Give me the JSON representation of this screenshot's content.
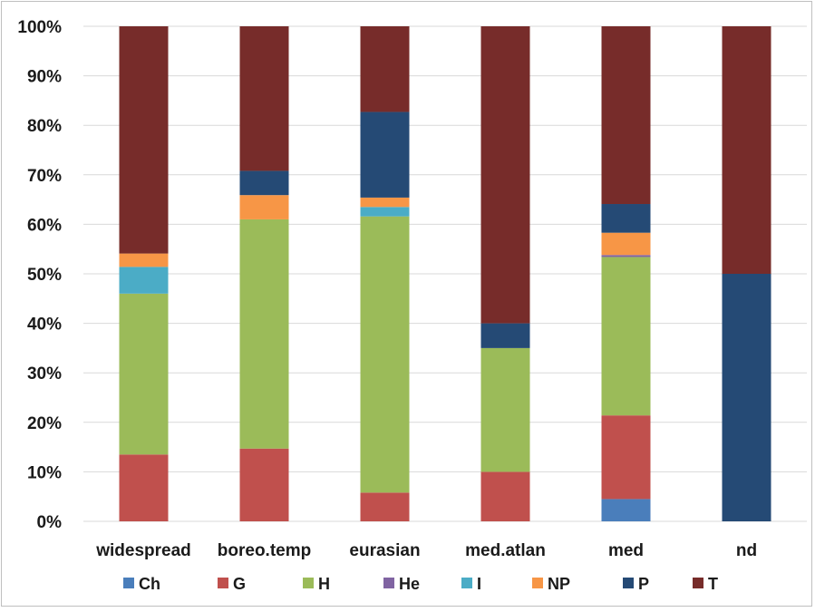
{
  "chart_data": {
    "type": "bar",
    "stacked": true,
    "percent": true,
    "categories": [
      "widespread",
      "boreo.temp",
      "eurasian",
      "med.atlan",
      "med",
      "nd"
    ],
    "ylim": [
      0,
      100
    ],
    "yticks": [
      "0%",
      "10%",
      "20%",
      "30%",
      "40%",
      "50%",
      "60%",
      "70%",
      "80%",
      "90%",
      "100%"
    ],
    "grid": true,
    "legend_position": "bottom",
    "series": [
      {
        "name": "Ch",
        "color": "#4a7ebb",
        "values": [
          0,
          0,
          0,
          0,
          4.5,
          0
        ]
      },
      {
        "name": "G",
        "color": "#c0504d",
        "values": [
          13.5,
          14.7,
          5.8,
          10,
          16.9,
          0
        ]
      },
      {
        "name": "H",
        "color": "#9bbb59",
        "values": [
          32.5,
          46.3,
          55.8,
          25,
          32.0,
          0
        ]
      },
      {
        "name": "He",
        "color": "#8064a2",
        "values": [
          0,
          0,
          0,
          0,
          0.4,
          0
        ]
      },
      {
        "name": "I",
        "color": "#4bacc6",
        "values": [
          5.4,
          0,
          1.9,
          0,
          0,
          0
        ]
      },
      {
        "name": "NP",
        "color": "#f79646",
        "values": [
          2.7,
          4.9,
          1.9,
          0,
          4.5,
          0
        ]
      },
      {
        "name": "P",
        "color": "#254a75",
        "values": [
          0,
          4.9,
          17.3,
          5,
          5.8,
          50
        ]
      },
      {
        "name": "T",
        "color": "#772c2a",
        "values": [
          45.9,
          29.2,
          17.3,
          60,
          35.9,
          50
        ]
      }
    ]
  }
}
